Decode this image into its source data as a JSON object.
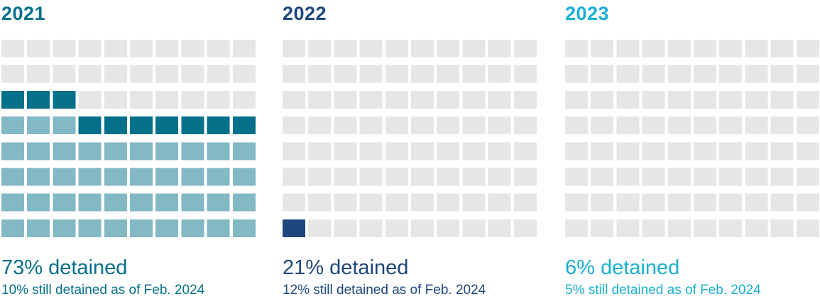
{
  "chart_data": [
    {
      "type": "waffle",
      "title": "2021",
      "grid": {
        "rows": 10,
        "cols": 10
      },
      "detained_pct": 73,
      "still_detained_pct": 10,
      "detained_label": "73% detained",
      "still_label": "10% still detained as of Feb. 2024",
      "colors": {
        "title": "#04708a",
        "still_detained": "#04708a",
        "released": "#83b8c5",
        "empty": "#e6e6e7",
        "text": "#04708a"
      }
    },
    {
      "type": "waffle",
      "title": "2022",
      "grid": {
        "rows": 10,
        "cols": 10
      },
      "detained_pct": 21,
      "still_detained_pct": 12,
      "detained_label": "21% detained",
      "still_label": "12% still detained as of Feb. 2024",
      "colors": {
        "title": "#1f477d",
        "still_detained": "#1f477d",
        "released": "#8fa3bf",
        "empty": "#e6e6e7",
        "text": "#1f477d"
      }
    },
    {
      "type": "waffle",
      "title": "2023",
      "grid": {
        "rows": 10,
        "cols": 10
      },
      "detained_pct": 6,
      "still_detained_pct": 5,
      "detained_label": "6% detained",
      "still_label": "5% still detained as of Feb. 2024",
      "colors": {
        "title": "#18afd3",
        "still_detained": "#18afd3",
        "released": "#8ad5e8",
        "empty": "#e6e6e7",
        "text": "#18afd3"
      }
    }
  ]
}
